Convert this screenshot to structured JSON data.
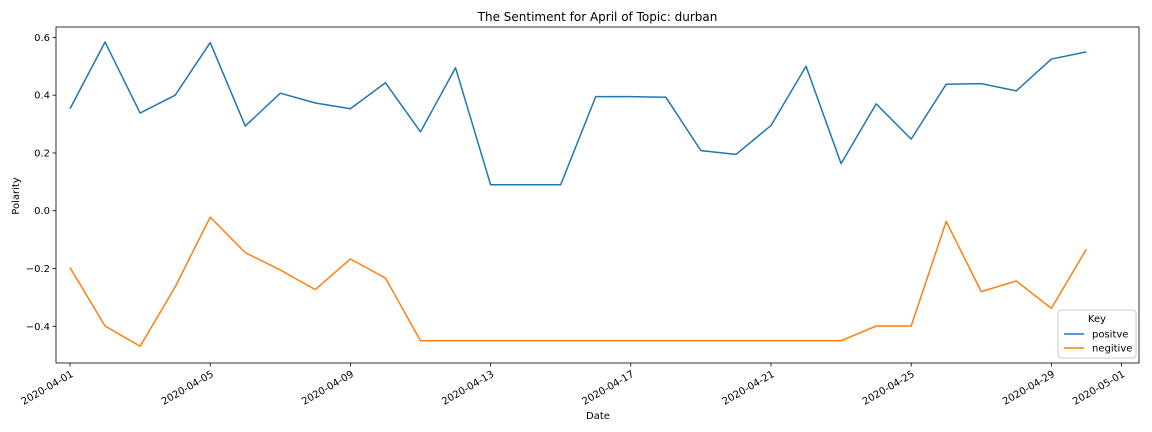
{
  "chart_data": {
    "type": "line",
    "title": "The Sentiment for April of Topic: durban",
    "xlabel": "Date",
    "ylabel": "Polarity",
    "x": [
      "2020-04-01",
      "2020-04-02",
      "2020-04-03",
      "2020-04-04",
      "2020-04-05",
      "2020-04-06",
      "2020-04-07",
      "2020-04-08",
      "2020-04-09",
      "2020-04-10",
      "2020-04-11",
      "2020-04-12",
      "2020-04-13",
      "2020-04-14",
      "2020-04-15",
      "2020-04-16",
      "2020-04-17",
      "2020-04-18",
      "2020-04-19",
      "2020-04-20",
      "2020-04-21",
      "2020-04-22",
      "2020-04-23",
      "2020-04-24",
      "2020-04-25",
      "2020-04-26",
      "2020-04-27",
      "2020-04-28",
      "2020-04-29",
      "2020-04-30"
    ],
    "series": [
      {
        "name": "positve",
        "color": "#1f77b4",
        "values": [
          0.353,
          0.584,
          0.338,
          0.4,
          0.582,
          0.293,
          0.407,
          0.373,
          0.353,
          0.443,
          0.273,
          0.495,
          0.09,
          0.09,
          0.09,
          0.395,
          0.395,
          0.393,
          0.208,
          0.195,
          0.295,
          0.5,
          0.163,
          0.37,
          0.248,
          0.438,
          0.44,
          0.415,
          0.525,
          0.55
        ]
      },
      {
        "name": "negitive",
        "color": "#ff7f0e",
        "values": [
          -0.197,
          -0.399,
          -0.469,
          -0.264,
          -0.022,
          -0.145,
          -0.205,
          -0.273,
          -0.167,
          -0.233,
          -0.45,
          -0.45,
          -0.45,
          -0.45,
          -0.45,
          -0.45,
          -0.45,
          -0.45,
          -0.45,
          -0.45,
          -0.45,
          -0.45,
          -0.45,
          -0.399,
          -0.399,
          -0.037,
          -0.28,
          -0.243,
          -0.338,
          -0.133
        ]
      }
    ],
    "x_ticks": [
      "2020-04-01",
      "2020-04-05",
      "2020-04-09",
      "2020-04-13",
      "2020-04-17",
      "2020-04-21",
      "2020-04-25",
      "2020-04-29",
      "2020-05-01"
    ],
    "y_ticks": [
      "0.6",
      "0.4",
      "0.2",
      "0.0",
      "−0.2",
      "−0.4"
    ],
    "y_tick_values": [
      0.6,
      0.4,
      0.2,
      0.0,
      -0.2,
      -0.4
    ],
    "xlim": [
      "2020-03-31.6",
      "2020-05-01.5"
    ],
    "ylim": [
      -0.527,
      0.636
    ],
    "grid": false,
    "legend": {
      "title": "Key",
      "placement": "lower-right",
      "entries": [
        "positve",
        "negitive"
      ]
    }
  }
}
